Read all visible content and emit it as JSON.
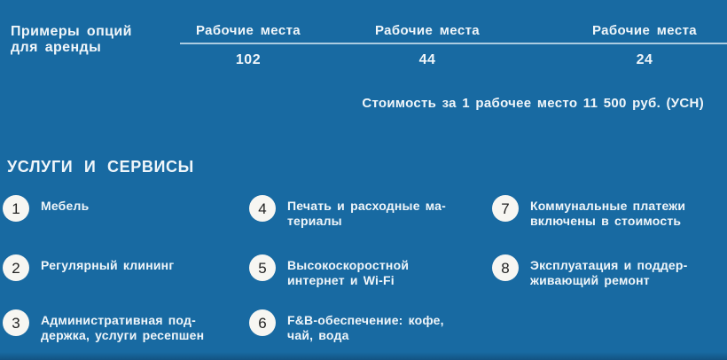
{
  "colors": {
    "background": "#186aa2",
    "text": "#f0f6fa",
    "rule": "rgba(222,237,246,0.75)",
    "circle_bg": "#f7f6f2",
    "circle_text": "#222222"
  },
  "header": {
    "label_line1": "Примеры опций",
    "label_line2": "для аренды",
    "columns": [
      {
        "title": "Рабочие места",
        "value": "102"
      },
      {
        "title": "Рабочие места",
        "value": "44"
      },
      {
        "title": "Рабочие места",
        "value": "24"
      }
    ],
    "price_note": "Стоимость за 1 рабочее место 11 500 руб. (УСН)"
  },
  "services": {
    "heading": "УСЛУГИ И СЕРВИСЫ",
    "items": [
      {
        "number": "1",
        "lines": [
          "Мебель"
        ]
      },
      {
        "number": "2",
        "lines": [
          "Регулярный клининг"
        ]
      },
      {
        "number": "3",
        "lines": [
          "Административная под-",
          "держка, услуги ресепшен"
        ]
      },
      {
        "number": "4",
        "lines": [
          "Печать и расходные ма-",
          "териалы"
        ]
      },
      {
        "number": "5",
        "lines": [
          "Высокоскоростной",
          "интернет и Wi-Fi"
        ]
      },
      {
        "number": "6",
        "lines": [
          "F&B-обеспечение: кофе,",
          "чай, вода"
        ]
      },
      {
        "number": "7",
        "lines": [
          "Коммунальные платежи",
          "включены в стоимость"
        ]
      },
      {
        "number": "8",
        "lines": [
          "Эксплуатация и поддер-",
          "живающий ремонт"
        ]
      }
    ]
  }
}
